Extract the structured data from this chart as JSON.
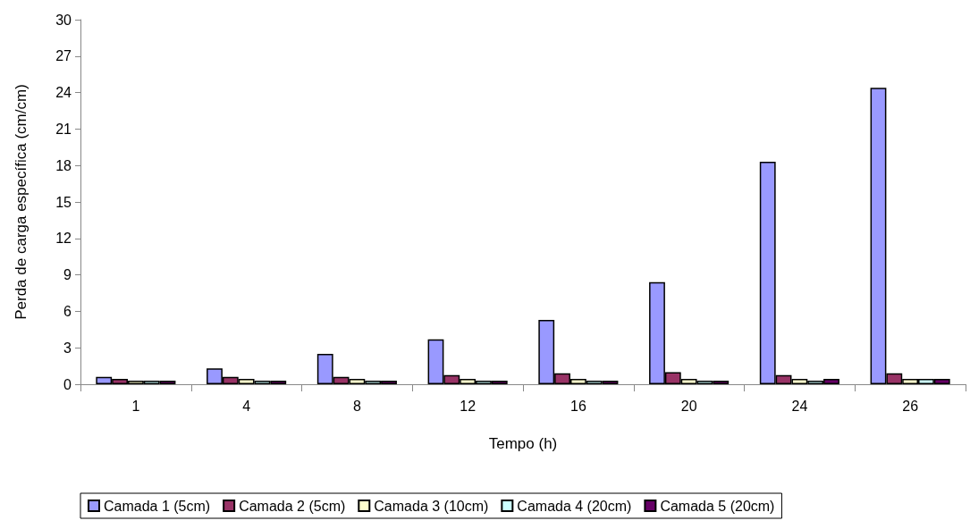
{
  "chart_data": {
    "type": "bar",
    "xlabel": "Tempo (h)",
    "ylabel": "Perda de carga específica (cm/cm)",
    "categories": [
      "1",
      "4",
      "8",
      "12",
      "16",
      "20",
      "24",
      "26"
    ],
    "series": [
      {
        "name": "Camada 1 (5cm)",
        "color": "#9999ff",
        "values": [
          0.6,
          1.3,
          2.5,
          3.7,
          5.3,
          8.4,
          18.3,
          24.4
        ]
      },
      {
        "name": "Camada 2 (5cm)",
        "color": "#993366",
        "values": [
          0.45,
          0.6,
          0.6,
          0.75,
          0.9,
          1.0,
          0.75,
          0.9
        ]
      },
      {
        "name": "Camada 3 (10cm)",
        "color": "#ffffcc",
        "values": [
          0.3,
          0.45,
          0.45,
          0.45,
          0.45,
          0.45,
          0.45,
          0.45
        ]
      },
      {
        "name": "Camada 4 (20cm)",
        "color": "#ccffff",
        "values": [
          0.3,
          0.3,
          0.3,
          0.3,
          0.3,
          0.3,
          0.3,
          0.45
        ]
      },
      {
        "name": "Camada 5 (20cm)",
        "color": "#660066",
        "values": [
          0.3,
          0.3,
          0.3,
          0.3,
          0.3,
          0.3,
          0.45,
          0.45
        ]
      }
    ],
    "ylim": [
      0,
      30
    ],
    "yticks": [
      0,
      3,
      6,
      9,
      12,
      15,
      18,
      21,
      24,
      27,
      30
    ],
    "grid": false,
    "legend": "bottom"
  }
}
